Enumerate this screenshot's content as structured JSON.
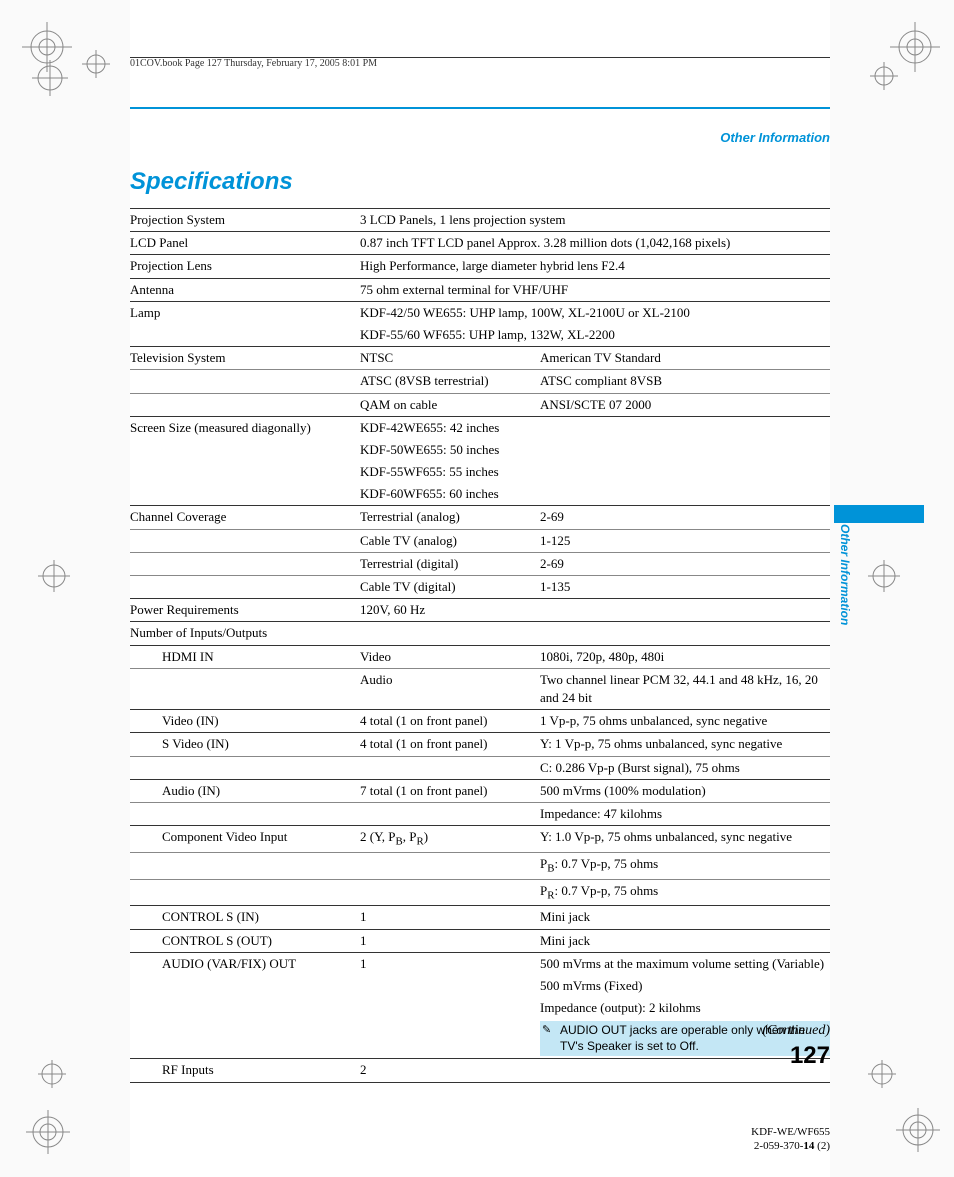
{
  "header": {
    "running": "01COV.book  Page 127  Thursday, February 17, 2005  8:01 PM"
  },
  "section": {
    "tag_top": "Other Information",
    "title": "Specifications",
    "side_label": "Other Information"
  },
  "specs": {
    "projection_system": {
      "label": "Projection System",
      "value": "3 LCD Panels, 1 lens projection system"
    },
    "lcd_panel": {
      "label": "LCD Panel",
      "value": "0.87 inch TFT LCD panel Approx. 3.28 million dots (1,042,168 pixels)"
    },
    "projection_lens": {
      "label": "Projection Lens",
      "value": "High Performance, large diameter hybrid lens F2.4"
    },
    "antenna": {
      "label": "Antenna",
      "value": "75 ohm external terminal for VHF/UHF"
    },
    "lamp": {
      "label": "Lamp",
      "lines": [
        "KDF-42/50 WE655: UHP lamp, 100W, XL-2100U or XL-2100",
        "KDF-55/60 WF655: UHP lamp, 132W, XL-2200"
      ]
    },
    "tv_system": {
      "label": "Television System",
      "rows": [
        {
          "std": "NTSC",
          "desc": "American TV Standard"
        },
        {
          "std": "ATSC (8VSB terrestrial)",
          "desc": "ATSC compliant 8VSB"
        },
        {
          "std": "QAM on cable",
          "desc": "ANSI/SCTE 07 2000"
        }
      ]
    },
    "screen_size": {
      "label": "Screen Size (measured diagonally)",
      "lines": [
        "KDF-42WE655: 42 inches",
        "KDF-50WE655: 50 inches",
        "KDF-55WF655: 55 inches",
        "KDF-60WF655: 60 inches"
      ]
    },
    "channel_coverage": {
      "label": "Channel Coverage",
      "rows": [
        {
          "std": "Terrestrial (analog)",
          "desc": "2-69"
        },
        {
          "std": "Cable TV (analog)",
          "desc": "1-125"
        },
        {
          "std": "Terrestrial (digital)",
          "desc": "2-69"
        },
        {
          "std": "Cable TV (digital)",
          "desc": "1-135"
        }
      ]
    },
    "power": {
      "label": "Power Requirements",
      "value": "120V, 60 Hz"
    },
    "io_header": {
      "label": "Number of Inputs/Outputs"
    },
    "io": {
      "hdmi": {
        "label": "HDMI IN",
        "rows": [
          {
            "std": "Video",
            "desc": "1080i, 720p, 480p, 480i"
          },
          {
            "std": "Audio",
            "desc": "Two channel linear PCM 32, 44.1 and 48 kHz, 16, 20 and 24 bit"
          }
        ]
      },
      "video_in": {
        "label": "Video (IN)",
        "std": "4 total (1 on front panel)",
        "desc": "1 Vp-p, 75 ohms unbalanced, sync negative"
      },
      "svideo_in": {
        "label": "S Video (IN)",
        "std": "4 total (1 on front panel)",
        "descs": [
          "Y: 1 Vp-p, 75 ohms unbalanced, sync negative",
          "C: 0.286 Vp-p (Burst signal), 75 ohms"
        ]
      },
      "audio_in": {
        "label": "Audio (IN)",
        "std": "7 total (1 on front panel)",
        "descs": [
          "500 mVrms (100% modulation)",
          "Impedance: 47 kilohms"
        ]
      },
      "component": {
        "label": "Component Video Input",
        "std_html": "2 (Y, P<sub>B</sub>, P<sub>R</sub>)",
        "descs": [
          "Y: 1.0 Vp-p, 75 ohms unbalanced, sync negative",
          "P<sub>B</sub>: 0.7 Vp-p, 75 ohms",
          "P<sub>R</sub>: 0.7 Vp-p, 75 ohms"
        ]
      },
      "control_s_in": {
        "label": "CONTROL S (IN)",
        "std": "1",
        "desc": "Mini jack"
      },
      "control_s_out": {
        "label": "CONTROL S (OUT)",
        "std": "1",
        "desc": "Mini jack"
      },
      "audio_out": {
        "label": "AUDIO (VAR/FIX) OUT",
        "std": "1",
        "descs": [
          "500 mVrms at the maximum volume setting (Variable)",
          "500 mVrms (Fixed)",
          "Impedance (output): 2 kilohms"
        ],
        "note": "AUDIO OUT jacks are operable only when the TV's Speaker is set to Off."
      },
      "rf_inputs": {
        "label": "RF Inputs",
        "std": "2"
      }
    }
  },
  "continued": "(Continued)",
  "page_number": "127",
  "footer": {
    "model": "KDF-WE/WF655",
    "part_prefix": "2-059-370-",
    "part_bold": "14",
    "part_suffix": " (2)"
  },
  "colors": {
    "accent": "#0093d8",
    "note_bg": "#c4e7f5",
    "border": "#333333",
    "border_thin": "#888888"
  }
}
